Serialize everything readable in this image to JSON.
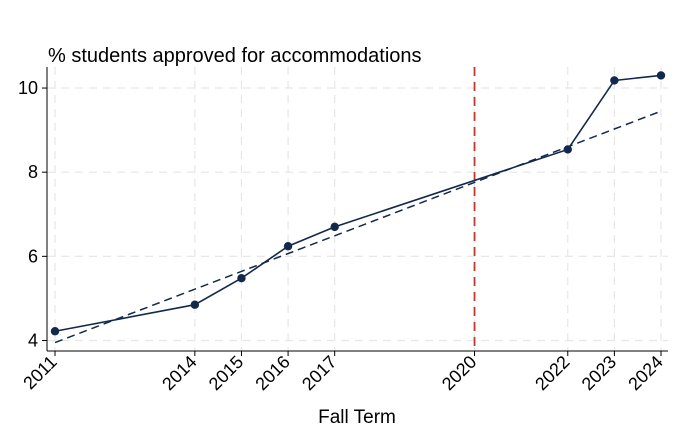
{
  "chart_data": {
    "type": "line",
    "title": "% students approved for accommodations",
    "xlabel": "Fall Term",
    "ylabel": "",
    "x": [
      2011,
      2014,
      2015,
      2016,
      2017,
      2022,
      2023,
      2024
    ],
    "series": [
      {
        "values": [
          4.22,
          4.85,
          5.48,
          6.24,
          6.7,
          8.54,
          10.18,
          10.3
        ]
      }
    ],
    "trend_line": {
      "x": [
        2011,
        2024
      ],
      "y": [
        3.95,
        9.45
      ]
    },
    "reference_line": {
      "x": 2020
    },
    "x_ticks": [
      "2011",
      "2014",
      "2015",
      "2016",
      "2017",
      "2020",
      "2022",
      "2023",
      "2024"
    ],
    "y_ticks": [
      "4",
      "6",
      "8",
      "10"
    ],
    "xlim": [
      2011,
      2024
    ],
    "ylim": [
      3.75,
      10.5
    ],
    "grid": true,
    "colors": {
      "series": "#13294b",
      "reference": "#c0392b",
      "grid": "#e6e6e6"
    }
  }
}
